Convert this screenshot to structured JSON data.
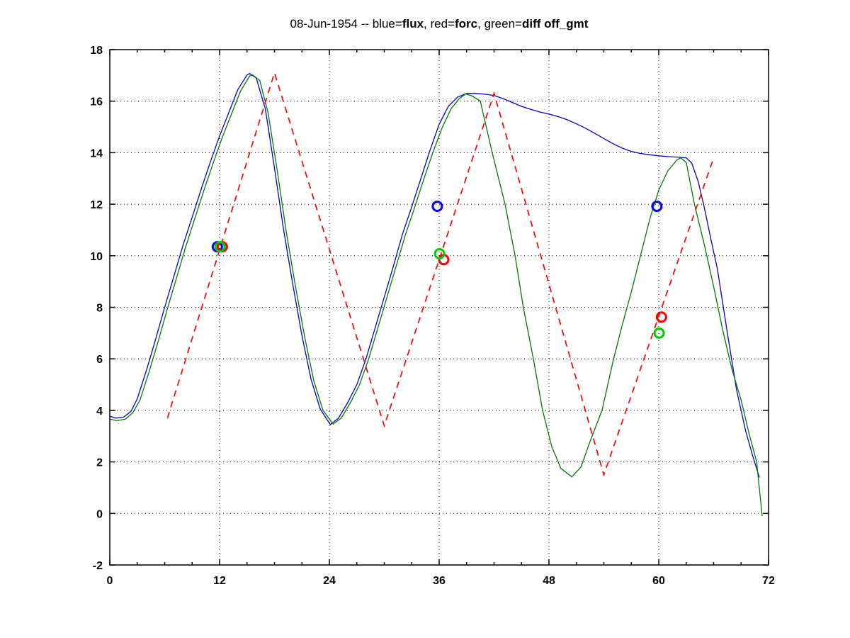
{
  "figure": {
    "background": "#ffffff"
  },
  "title": {
    "full_text": "08-Jun-1954 -- blue=flux, red=forc, green=diff off_gmt",
    "segments": [
      {
        "text": "08-Jun-1954 -- blue=",
        "bold": false
      },
      {
        "text": "flux",
        "bold": true
      },
      {
        "text": ", red=",
        "bold": false
      },
      {
        "text": "forc",
        "bold": true
      },
      {
        "text": ", green=",
        "bold": false
      },
      {
        "text": "diff off_gmt",
        "bold": true
      }
    ]
  },
  "chart_data": {
    "type": "line",
    "title": "08-Jun-1954 -- blue=flux, red=forc, green=diff off_gmt",
    "xlabel": "",
    "ylabel": "",
    "xlim": [
      0,
      72
    ],
    "ylim": [
      -2,
      18
    ],
    "xticks": [
      0,
      12,
      24,
      36,
      48,
      60,
      72
    ],
    "xminor_step": 3,
    "yticks": [
      -2,
      0,
      2,
      4,
      6,
      8,
      10,
      12,
      14,
      16,
      18
    ],
    "grid": "dotted",
    "grid_color": "#000000",
    "legend_position": "encoded-in-title",
    "series": [
      {
        "name": "flux",
        "color": "#0000cc",
        "style": "solid",
        "points": [
          [
            0,
            3.77
          ],
          [
            0.7,
            3.7
          ],
          [
            1.5,
            3.74
          ],
          [
            2.3,
            3.95
          ],
          [
            3,
            4.45
          ],
          [
            4,
            5.55
          ],
          [
            5,
            6.75
          ],
          [
            6,
            8.0
          ],
          [
            7,
            9.2
          ],
          [
            8,
            10.4
          ],
          [
            9,
            11.5
          ],
          [
            10,
            12.6
          ],
          [
            11,
            13.65
          ],
          [
            12,
            14.65
          ],
          [
            13,
            15.55
          ],
          [
            14,
            16.45
          ],
          [
            15,
            17.02
          ],
          [
            15.3,
            17.07
          ],
          [
            16,
            16.9
          ],
          [
            17,
            15.7
          ],
          [
            18,
            13.4
          ],
          [
            19,
            11.0
          ],
          [
            20,
            8.9
          ],
          [
            21,
            6.9
          ],
          [
            22,
            5.2
          ],
          [
            23,
            4.05
          ],
          [
            24.1,
            3.45
          ],
          [
            25,
            3.7
          ],
          [
            26,
            4.3
          ],
          [
            27,
            5.0
          ],
          [
            28,
            6.0
          ],
          [
            29,
            7.2
          ],
          [
            30,
            8.4
          ],
          [
            31,
            9.6
          ],
          [
            32,
            10.85
          ],
          [
            33,
            11.9
          ],
          [
            34,
            13.0
          ],
          [
            35,
            14.1
          ],
          [
            36,
            15.1
          ],
          [
            37,
            15.8
          ],
          [
            38,
            16.15
          ],
          [
            39,
            16.3
          ],
          [
            40,
            16.3
          ],
          [
            41,
            16.27
          ],
          [
            42,
            16.22
          ],
          [
            43,
            16.1
          ],
          [
            44,
            15.95
          ],
          [
            45,
            15.8
          ],
          [
            46,
            15.68
          ],
          [
            47,
            15.58
          ],
          [
            48,
            15.5
          ],
          [
            49,
            15.4
          ],
          [
            50,
            15.28
          ],
          [
            51,
            15.12
          ],
          [
            52,
            14.95
          ],
          [
            53,
            14.75
          ],
          [
            54,
            14.55
          ],
          [
            55,
            14.35
          ],
          [
            56,
            14.18
          ],
          [
            57,
            14.05
          ],
          [
            58,
            13.97
          ],
          [
            59,
            13.92
          ],
          [
            60,
            13.88
          ],
          [
            61,
            13.85
          ],
          [
            62,
            13.83
          ],
          [
            63,
            13.8
          ],
          [
            63.6,
            13.6
          ],
          [
            64.3,
            12.9
          ],
          [
            64.9,
            12.0
          ],
          [
            65.7,
            10.65
          ],
          [
            66.4,
            9.5
          ],
          [
            67.5,
            7.0
          ],
          [
            68.5,
            4.8
          ],
          [
            69.5,
            3.2
          ],
          [
            70.3,
            2.2
          ],
          [
            71,
            1.4
          ]
        ]
      },
      {
        "name": "diff",
        "color": "#007a00",
        "style": "solid",
        "points": [
          [
            0,
            3.66
          ],
          [
            0.8,
            3.6
          ],
          [
            1.7,
            3.66
          ],
          [
            2.5,
            3.9
          ],
          [
            3.3,
            4.4
          ],
          [
            4.3,
            5.5
          ],
          [
            5.3,
            6.7
          ],
          [
            6.3,
            7.95
          ],
          [
            7.3,
            9.15
          ],
          [
            8.3,
            10.35
          ],
          [
            9.3,
            11.45
          ],
          [
            10.3,
            12.55
          ],
          [
            11.3,
            13.6
          ],
          [
            12.3,
            14.6
          ],
          [
            13.3,
            15.5
          ],
          [
            14.3,
            16.4
          ],
          [
            15.3,
            16.98
          ],
          [
            15.6,
            17.02
          ],
          [
            16.4,
            16.8
          ],
          [
            17.3,
            15.55
          ],
          [
            18.3,
            13.3
          ],
          [
            19.3,
            10.9
          ],
          [
            20.3,
            8.8
          ],
          [
            21.3,
            6.85
          ],
          [
            22.3,
            5.15
          ],
          [
            23.3,
            4.0
          ],
          [
            24.4,
            3.47
          ],
          [
            25.3,
            3.7
          ],
          [
            26.3,
            4.3
          ],
          [
            27.3,
            5.0
          ],
          [
            28.3,
            6.0
          ],
          [
            29.3,
            7.2
          ],
          [
            30.3,
            8.4
          ],
          [
            31.3,
            9.6
          ],
          [
            32.3,
            10.8
          ],
          [
            33.3,
            11.85
          ],
          [
            34.3,
            12.95
          ],
          [
            35.3,
            14.0
          ],
          [
            36.3,
            14.95
          ],
          [
            37.3,
            15.7
          ],
          [
            38.2,
            16.1
          ],
          [
            38.9,
            16.28
          ],
          [
            39.6,
            16.2
          ],
          [
            40.5,
            16.0
          ],
          [
            41.8,
            14.0
          ],
          [
            43.2,
            12.0
          ],
          [
            44.3,
            10.0
          ],
          [
            45.2,
            8.0
          ],
          [
            46.3,
            6.0
          ],
          [
            47.3,
            4.0
          ],
          [
            48.3,
            2.6
          ],
          [
            49.3,
            1.75
          ],
          [
            50.5,
            1.42
          ],
          [
            51.5,
            1.8
          ],
          [
            52.5,
            2.8
          ],
          [
            53.8,
            4.0
          ],
          [
            55,
            5.9
          ],
          [
            56,
            7.3
          ],
          [
            57,
            8.6
          ],
          [
            58,
            10.0
          ],
          [
            59,
            11.4
          ],
          [
            60,
            12.55
          ],
          [
            61,
            13.3
          ],
          [
            62,
            13.72
          ],
          [
            62.4,
            13.8
          ],
          [
            63,
            13.62
          ],
          [
            63.9,
            12.0
          ],
          [
            65,
            10.4
          ],
          [
            66,
            8.8
          ],
          [
            67,
            7.1
          ],
          [
            68,
            5.6
          ],
          [
            69,
            4.4
          ],
          [
            69.8,
            3.2
          ],
          [
            70.7,
            2.0
          ],
          [
            71.3,
            -0.1
          ]
        ]
      },
      {
        "name": "forc",
        "color": "#ff0000",
        "style": "dashed",
        "points": [
          [
            6.3,
            3.7
          ],
          [
            18,
            17.1
          ],
          [
            30,
            3.4
          ],
          [
            42,
            16.3
          ],
          [
            54,
            1.5
          ],
          [
            66,
            13.8
          ]
        ]
      }
    ],
    "markers": [
      {
        "name": "flux",
        "color": "#0000ff",
        "shape": "circle",
        "points": [
          [
            11.75,
            10.35
          ],
          [
            35.8,
            11.92
          ],
          [
            59.8,
            11.92
          ]
        ]
      },
      {
        "name": "forc",
        "color": "#ff0000",
        "shape": "circle",
        "points": [
          [
            12.3,
            10.35
          ],
          [
            36.5,
            9.85
          ],
          [
            60.3,
            7.62
          ]
        ]
      },
      {
        "name": "diff",
        "color": "#00cc00",
        "shape": "circle",
        "points": [
          [
            12.05,
            10.35
          ],
          [
            36.05,
            10.08
          ],
          [
            60.05,
            7.0
          ]
        ]
      }
    ]
  }
}
